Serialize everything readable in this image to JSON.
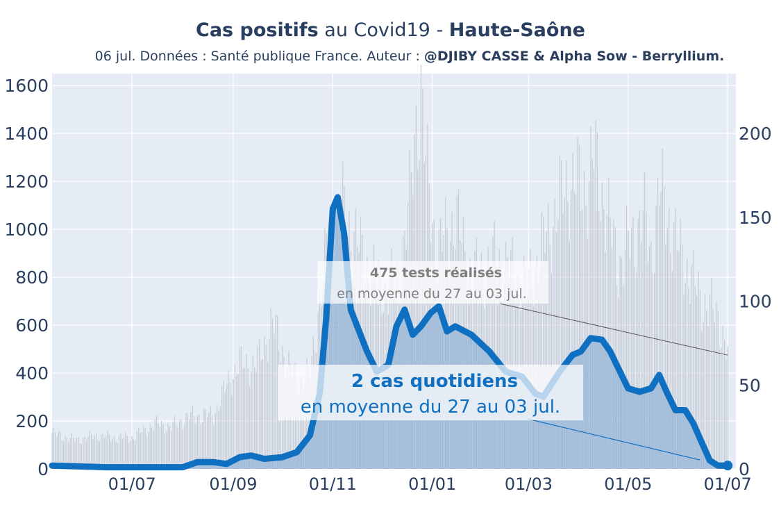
{
  "title": {
    "bold1": "Cas positifs",
    "mid": " au Covid19 - ",
    "bold2": "Haute-Saône"
  },
  "subtitle": {
    "text": "06 jul. Données : Santé publique France. Auteur : ",
    "bold": "@DJIBY CASSE & Alpha Sow - Berryllium."
  },
  "colors": {
    "plot_bg": "#e5ecf6",
    "cases_line": "#0f6fc0",
    "cases_fill": "#7fa9d3",
    "tests_bar": "#c8cdd6",
    "text": "#2a3f5f"
  },
  "chart_data": {
    "type": "line",
    "x_range": [
      "2020-05-13",
      "2021-07-06"
    ],
    "y_left": {
      "range": [
        0,
        1650
      ],
      "ticks": [
        0,
        200,
        400,
        600,
        800,
        1000,
        1200,
        1400,
        1600
      ]
    },
    "y_right": {
      "range": [
        0,
        235.7
      ],
      "ticks": [
        0,
        50,
        100,
        150,
        200
      ]
    },
    "x_ticks": [
      {
        "date": "2020-07-01",
        "label": "01/07"
      },
      {
        "date": "2020-09-01",
        "label": "01/09"
      },
      {
        "date": "2020-11-01",
        "label": "01/11"
      },
      {
        "date": "2021-01-01",
        "label": "01/01"
      },
      {
        "date": "2021-03-01",
        "label": "01/03"
      },
      {
        "date": "2021-05-01",
        "label": "01/05"
      },
      {
        "date": "2021-07-01",
        "label": "01/07"
      }
    ],
    "grid": true,
    "series": [
      {
        "axis": "left",
        "style": "bars",
        "points": [
          [
            "2020-05-13",
            150
          ],
          [
            "2020-05-27",
            120
          ],
          [
            "2020-06-10",
            140
          ],
          [
            "2020-06-20",
            130
          ],
          [
            "2020-07-01",
            130
          ],
          [
            "2020-07-15",
            190
          ],
          [
            "2020-07-25",
            175
          ],
          [
            "2020-08-05",
            220
          ],
          [
            "2020-08-20",
            225
          ],
          [
            "2020-08-28",
            350
          ],
          [
            "2020-09-05",
            440
          ],
          [
            "2020-09-15",
            430
          ],
          [
            "2020-09-25",
            610
          ],
          [
            "2020-10-05",
            420
          ],
          [
            "2020-10-12",
            370
          ],
          [
            "2020-10-18",
            400
          ],
          [
            "2020-10-24",
            700
          ],
          [
            "2020-10-30",
            980
          ],
          [
            "2020-11-07",
            1080
          ],
          [
            "2020-11-15",
            950
          ],
          [
            "2020-11-25",
            800
          ],
          [
            "2020-12-05",
            740
          ],
          [
            "2020-12-12",
            830
          ],
          [
            "2020-12-18",
            1100
          ],
          [
            "2020-12-22",
            1450
          ],
          [
            "2020-12-25",
            1570
          ],
          [
            "2020-12-28",
            1250
          ],
          [
            "2021-01-04",
            900
          ],
          [
            "2021-01-15",
            1050
          ],
          [
            "2021-01-25",
            800
          ],
          [
            "2021-02-10",
            880
          ],
          [
            "2021-02-28",
            760
          ],
          [
            "2021-03-15",
            1020
          ],
          [
            "2021-03-25",
            1200
          ],
          [
            "2021-04-05",
            1170
          ],
          [
            "2021-04-10",
            1300
          ],
          [
            "2021-04-25",
            850
          ],
          [
            "2021-05-05",
            980
          ],
          [
            "2021-05-10",
            1060
          ],
          [
            "2021-05-15",
            890
          ],
          [
            "2021-05-20",
            1160
          ],
          [
            "2021-06-01",
            910
          ],
          [
            "2021-06-15",
            700
          ],
          [
            "2021-06-25",
            640
          ],
          [
            "2021-07-01",
            470
          ]
        ]
      },
      {
        "axis": "right",
        "style": "line",
        "points": [
          [
            "2020-05-13",
            2
          ],
          [
            "2020-06-15",
            1
          ],
          [
            "2020-07-01",
            1
          ],
          [
            "2020-08-01",
            1
          ],
          [
            "2020-08-10",
            4
          ],
          [
            "2020-08-20",
            4
          ],
          [
            "2020-08-28",
            3
          ],
          [
            "2020-09-05",
            7
          ],
          [
            "2020-09-12",
            8
          ],
          [
            "2020-09-20",
            6
          ],
          [
            "2020-10-01",
            7
          ],
          [
            "2020-10-10",
            10
          ],
          [
            "2020-10-18",
            20
          ],
          [
            "2020-10-24",
            45
          ],
          [
            "2020-10-28",
            90
          ],
          [
            "2020-11-01",
            155
          ],
          [
            "2020-11-04",
            162
          ],
          [
            "2020-11-08",
            140
          ],
          [
            "2020-11-12",
            95
          ],
          [
            "2020-11-16",
            85
          ],
          [
            "2020-11-22",
            70
          ],
          [
            "2020-11-28",
            58
          ],
          [
            "2020-12-05",
            62
          ],
          [
            "2020-12-10",
            85
          ],
          [
            "2020-12-15",
            95
          ],
          [
            "2020-12-20",
            80
          ],
          [
            "2020-12-25",
            85
          ],
          [
            "2020-12-31",
            93
          ],
          [
            "2021-01-05",
            97
          ],
          [
            "2021-01-10",
            82
          ],
          [
            "2021-01-15",
            85
          ],
          [
            "2021-01-25",
            80
          ],
          [
            "2021-02-05",
            70
          ],
          [
            "2021-02-15",
            58
          ],
          [
            "2021-02-25",
            55
          ],
          [
            "2021-03-05",
            45
          ],
          [
            "2021-03-10",
            43
          ],
          [
            "2021-03-20",
            58
          ],
          [
            "2021-03-28",
            68
          ],
          [
            "2021-04-02",
            70
          ],
          [
            "2021-04-08",
            78
          ],
          [
            "2021-04-15",
            77
          ],
          [
            "2021-04-20",
            70
          ],
          [
            "2021-04-25",
            60
          ],
          [
            "2021-05-01",
            48
          ],
          [
            "2021-05-08",
            46
          ],
          [
            "2021-05-15",
            48
          ],
          [
            "2021-05-20",
            56
          ],
          [
            "2021-05-25",
            45
          ],
          [
            "2021-05-30",
            35
          ],
          [
            "2021-06-05",
            35
          ],
          [
            "2021-06-10",
            27
          ],
          [
            "2021-06-15",
            16
          ],
          [
            "2021-06-20",
            5
          ],
          [
            "2021-06-25",
            2
          ],
          [
            "2021-07-01",
            2
          ]
        ]
      }
    ],
    "annotations": [
      {
        "bold": "475 tests réalisés",
        "text": "en moyenne du 27 au 03 jul.",
        "points_to": [
          "2021-07-01",
          475
        ]
      },
      {
        "bold": "2 cas quotidiens",
        "text": "en moyenne du 27 au 03 jul.",
        "points_to": [
          "2021-07-01",
          2
        ]
      }
    ]
  }
}
